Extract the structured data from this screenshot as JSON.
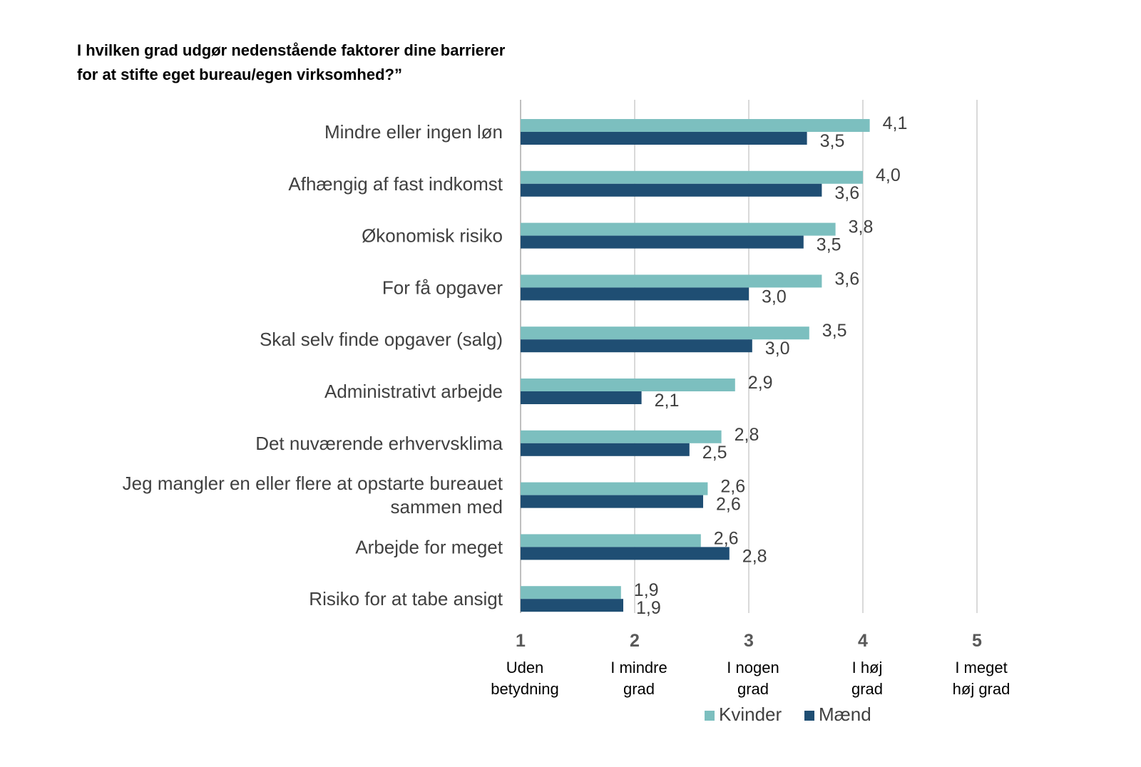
{
  "chart_data": {
    "type": "bar",
    "orientation": "horizontal",
    "title_lines": [
      "I hvilken grad udgør nedenstående faktorer dine barrierer",
      "for at stifte eget bureau/egen virksomhed?”"
    ],
    "categories": [
      [
        "Mindre eller ingen løn"
      ],
      [
        "Afhængig af fast indkomst"
      ],
      [
        "Økonomisk risiko"
      ],
      [
        "For få opgaver"
      ],
      [
        "Skal selv finde opgaver (salg)"
      ],
      [
        "Administrativt arbejde"
      ],
      [
        "Det nuværende erhvervsklima"
      ],
      [
        "Jeg mangler en eller flere at opstarte bureauet",
        "sammen med"
      ],
      [
        "Arbejde for meget"
      ],
      [
        "Risiko for at tabe ansigt"
      ]
    ],
    "series": [
      {
        "name": "Kvinder",
        "color": "#7cbfbf",
        "values": [
          4.06,
          4.0,
          3.76,
          3.64,
          3.53,
          2.88,
          2.76,
          2.64,
          2.58,
          1.88
        ],
        "labels": [
          "4,1",
          "4,0",
          "3,8",
          "3,6",
          "3,5",
          "2,9",
          "2,8",
          "2,6",
          "2,6",
          "1,9"
        ]
      },
      {
        "name": "Mænd",
        "color": "#1f4e73",
        "values": [
          3.51,
          3.64,
          3.48,
          3.0,
          3.03,
          2.06,
          2.48,
          2.6,
          2.83,
          1.9
        ],
        "labels": [
          "3,5",
          "3,6",
          "3,5",
          "3,0",
          "3,0",
          "2,1",
          "2,5",
          "2,6",
          "2,8",
          "1,9"
        ]
      }
    ],
    "xlim": [
      1,
      5
    ],
    "xticks": [
      {
        "value": 1,
        "label": "1",
        "desc": [
          "Uden",
          "betydning"
        ]
      },
      {
        "value": 2,
        "label": "2",
        "desc": [
          "I mindre",
          "grad"
        ]
      },
      {
        "value": 3,
        "label": "3",
        "desc": [
          "I nogen",
          "grad"
        ]
      },
      {
        "value": 4,
        "label": "4",
        "desc": [
          "I høj",
          "grad"
        ]
      },
      {
        "value": 5,
        "label": "5",
        "desc": [
          "I meget",
          "høj grad"
        ]
      }
    ],
    "grid": true,
    "gridline_color": "#d9d9d9",
    "legend_position": "bottom"
  }
}
